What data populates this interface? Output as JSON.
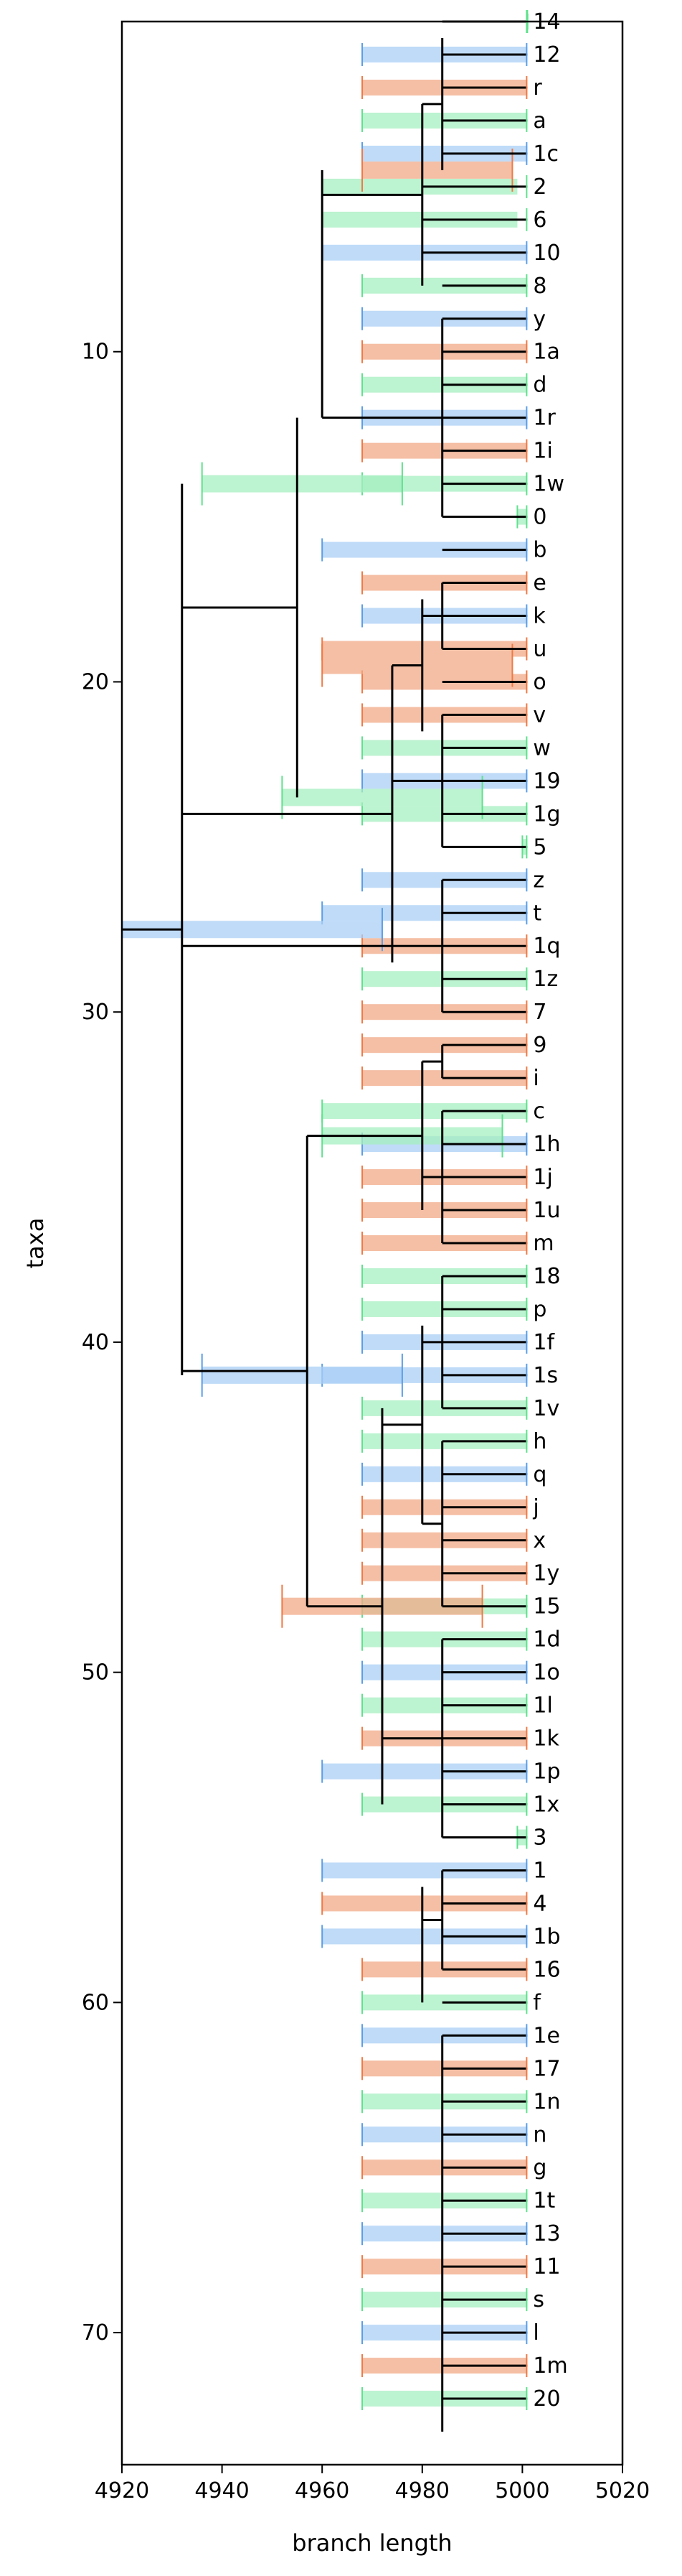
{
  "chart_data": {
    "type": "tree",
    "xlabel": "branch length",
    "ylabel": "taxa",
    "xlim": [
      4920,
      5020
    ],
    "ylim": [
      74,
      0
    ],
    "xticks": [
      4920,
      4940,
      4960,
      4980,
      5000,
      5020
    ],
    "yticks": [
      10,
      20,
      30,
      40,
      50,
      60,
      70
    ],
    "grid": false,
    "colors": {
      "blue": "#a9cff5",
      "orange": "#f2a987",
      "green": "#a6efc0",
      "blue_edge": "#5b9ee5",
      "orange_edge": "#ef7a45",
      "green_edge": "#5ee18d",
      "tree": "#000000"
    },
    "taxa": [
      "14",
      "12",
      "r",
      "a",
      "1c",
      "2",
      "6",
      "10",
      "8",
      "y",
      "1a",
      "d",
      "1r",
      "1i",
      "1w",
      "0",
      "b",
      "e",
      "k",
      "u",
      "o",
      "v",
      "w",
      "19",
      "1g",
      "5",
      "z",
      "t",
      "1q",
      "1z",
      "7",
      "9",
      "i",
      "c",
      "1h",
      "1j",
      "1u",
      "m",
      "18",
      "p",
      "1f",
      "1s",
      "1v",
      "h",
      "q",
      "j",
      "x",
      "1y",
      "15",
      "1d",
      "1o",
      "1l",
      "1k",
      "1p",
      "1x",
      "3",
      "1",
      "4",
      "1b",
      "16",
      "f",
      "1e",
      "17",
      "1n",
      "n",
      "g",
      "1t",
      "13",
      "11",
      "s",
      "l",
      "1m",
      "20"
    ],
    "tip_x": 5001,
    "tip_colors": [
      "g",
      "b",
      "o",
      "g",
      "b",
      "g",
      "g",
      "b",
      "g",
      "b",
      "o",
      "g",
      "b",
      "o",
      "g",
      "g",
      "b",
      "o",
      "b",
      "o",
      "o",
      "o",
      "g",
      "b",
      "g",
      "g",
      "b",
      "b",
      "o",
      "g",
      "o",
      "o",
      "o",
      "g",
      "b",
      "o",
      "o",
      "o",
      "g",
      "g",
      "b",
      "b",
      "g",
      "g",
      "b",
      "o",
      "o",
      "o",
      "g",
      "g",
      "b",
      "g",
      "o",
      "b",
      "g",
      "g",
      "b",
      "o",
      "b",
      "o",
      "g",
      "b",
      "o",
      "g",
      "b",
      "o",
      "g",
      "b",
      "o",
      "g",
      "b",
      "o",
      "g"
    ],
    "tip_bars": [
      [
        5001,
        5001
      ],
      [
        4968,
        5001
      ],
      [
        4968,
        5001
      ],
      [
        4968,
        5001
      ],
      [
        4968,
        5001
      ],
      [
        4960,
        4999
      ],
      [
        4960,
        4999
      ],
      [
        4960,
        5001
      ],
      [
        4968,
        5001
      ],
      [
        4968,
        5001
      ],
      [
        4968,
        5001
      ],
      [
        4968,
        5001
      ],
      [
        4968,
        5001
      ],
      [
        4968,
        5001
      ],
      [
        4968,
        5001
      ],
      [
        4999,
        5001
      ],
      [
        4960,
        5001
      ],
      [
        4968,
        5001
      ],
      [
        4968,
        5001
      ],
      [
        4960,
        5001
      ],
      [
        4968,
        5001
      ],
      [
        4968,
        5001
      ],
      [
        4968,
        5001
      ],
      [
        4968,
        5001
      ],
      [
        4968,
        5001
      ],
      [
        5000,
        5001
      ],
      [
        4968,
        5001
      ],
      [
        4960,
        5001
      ],
      [
        4968,
        5001
      ],
      [
        4968,
        5001
      ],
      [
        4968,
        5001
      ],
      [
        4968,
        5001
      ],
      [
        4968,
        5001
      ],
      [
        4960,
        5001
      ],
      [
        4968,
        5001
      ],
      [
        4968,
        5001
      ],
      [
        4968,
        5001
      ],
      [
        4968,
        5001
      ],
      [
        4968,
        5001
      ],
      [
        4968,
        5001
      ],
      [
        4968,
        5001
      ],
      [
        4960,
        5001
      ],
      [
        4968,
        5001
      ],
      [
        4968,
        5001
      ],
      [
        4968,
        5001
      ],
      [
        4968,
        5001
      ],
      [
        4968,
        5001
      ],
      [
        4968,
        5001
      ],
      [
        4968,
        5001
      ],
      [
        4968,
        5001
      ],
      [
        4968,
        5001
      ],
      [
        4968,
        5001
      ],
      [
        4968,
        5001
      ],
      [
        4960,
        5001
      ],
      [
        4968,
        5001
      ],
      [
        4999,
        5001
      ],
      [
        4960,
        5001
      ],
      [
        4960,
        5001
      ],
      [
        4960,
        5001
      ],
      [
        4968,
        5001
      ],
      [
        4968,
        5001
      ],
      [
        4968,
        5001
      ],
      [
        4968,
        5001
      ],
      [
        4968,
        5001
      ],
      [
        4968,
        5001
      ],
      [
        4968,
        5001
      ],
      [
        4968,
        5001
      ],
      [
        4968,
        5001
      ],
      [
        4968,
        5001
      ],
      [
        4968,
        5001
      ],
      [
        4968,
        5001
      ],
      [
        4968,
        5001
      ],
      [
        4968,
        5001
      ]
    ],
    "nodes": [
      {
        "x": 4984,
        "y0": 0.5,
        "y1": 4.5
      },
      {
        "x": 4980,
        "y0": 2.5,
        "y1": 8
      },
      {
        "x": 4984,
        "y0": 9,
        "y1": 15
      },
      {
        "x": 4960,
        "y0": 4.5,
        "y1": 12
      },
      {
        "x": 4984,
        "y0": 17,
        "y1": 19
      },
      {
        "x": 4980,
        "y0": 17.5,
        "y1": 21.5
      },
      {
        "x": 4984,
        "y0": 21,
        "y1": 25
      },
      {
        "x": 4974,
        "y0": 19.5,
        "y1": 28.5
      },
      {
        "x": 4984,
        "y0": 26,
        "y1": 30
      },
      {
        "x": 4955,
        "y0": 12,
        "y1": 23.5
      },
      {
        "x": 4984,
        "y0": 31,
        "y1": 32
      },
      {
        "x": 4984,
        "y0": 33,
        "y1": 37
      },
      {
        "x": 4980,
        "y0": 31.5,
        "y1": 36
      },
      {
        "x": 4984,
        "y0": 38,
        "y1": 42
      },
      {
        "x": 4984,
        "y0": 43,
        "y1": 48
      },
      {
        "x": 4980,
        "y0": 39.5,
        "y1": 45.5
      },
      {
        "x": 4984,
        "y0": 49,
        "y1": 55
      },
      {
        "x": 4984,
        "y0": 56,
        "y1": 59
      },
      {
        "x": 4980,
        "y0": 56.5,
        "y1": 60
      },
      {
        "x": 4984,
        "y0": 61,
        "y1": 73
      },
      {
        "x": 4972,
        "y0": 42,
        "y1": 54
      },
      {
        "x": 4957,
        "y0": 33.75,
        "y1": 48
      },
      {
        "x": 4932,
        "y0": 14,
        "y1": 41
      },
      {
        "x": 4920,
        "y0": 27.5,
        "y1": 27.5
      }
    ],
    "node_error_bars": [
      {
        "y": 14,
        "x0": 4936,
        "x1": 4976,
        "color": "g"
      },
      {
        "y": 23.5,
        "x0": 4952,
        "x1": 4992,
        "color": "g"
      },
      {
        "y": 27.5,
        "x0": 4920,
        "x1": 4972,
        "color": "b"
      },
      {
        "y": 33.75,
        "x0": 4960,
        "x1": 4996,
        "color": "g"
      },
      {
        "y": 41,
        "x0": 4936,
        "x1": 4976,
        "color": "b"
      },
      {
        "y": 48,
        "x0": 4952,
        "x1": 4992,
        "color": "o"
      },
      {
        "y": 19.5,
        "x0": 4960,
        "x1": 4998,
        "color": "o"
      },
      {
        "y": 4.5,
        "x0": 4968,
        "x1": 4998,
        "color": "o"
      }
    ]
  }
}
